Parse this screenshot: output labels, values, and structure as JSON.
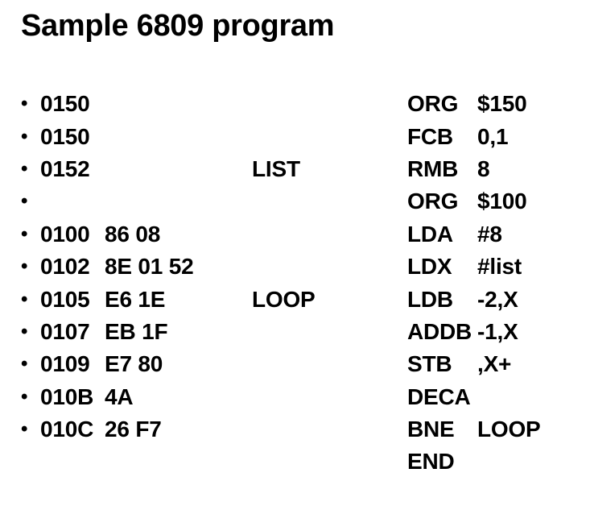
{
  "slide": {
    "title": "Sample 6809 program",
    "bullet_glyph": "•",
    "colors": {
      "background": "#ffffff",
      "text": "#000000"
    },
    "program_rows": [
      {
        "bullet": true,
        "address": "0150",
        "machine_code": "",
        "label": "",
        "mnemonic": "ORG",
        "operand": "$150"
      },
      {
        "bullet": true,
        "address": "0150",
        "machine_code": "",
        "label": "",
        "mnemonic": "FCB",
        "operand": "0,1"
      },
      {
        "bullet": true,
        "address": "0152",
        "machine_code": "",
        "label": "LIST",
        "mnemonic": "RMB",
        "operand": "8"
      },
      {
        "bullet": true,
        "address": "",
        "machine_code": "",
        "label": "",
        "mnemonic": "ORG",
        "operand": "$100"
      },
      {
        "bullet": true,
        "address": "0100",
        "machine_code": "86 08",
        "label": "",
        "mnemonic": "LDA",
        "operand": "#8"
      },
      {
        "bullet": true,
        "address": "0102",
        "machine_code": "8E 01 52",
        "label": "",
        "mnemonic": "LDX",
        "operand": "#list"
      },
      {
        "bullet": true,
        "address": "0105",
        "machine_code": "E6 1E",
        "label": "LOOP",
        "mnemonic": "LDB",
        "operand": "-2,X"
      },
      {
        "bullet": true,
        "address": "0107",
        "machine_code": "EB 1F",
        "label": "",
        "mnemonic": "ADDB",
        "operand": "-1,X"
      },
      {
        "bullet": true,
        "address": "0109",
        "machine_code": "E7 80",
        "label": "",
        "mnemonic": "STB",
        "operand": ",X+"
      },
      {
        "bullet": true,
        "address": "010B",
        "machine_code": "4A",
        "label": "",
        "mnemonic": "DECA",
        "operand": ""
      },
      {
        "bullet": true,
        "address": "010C",
        "machine_code": "26 F7",
        "label": "",
        "mnemonic": "BNE",
        "operand": "LOOP"
      },
      {
        "bullet": false,
        "address": "",
        "machine_code": "",
        "label": "",
        "mnemonic": "END",
        "operand": ""
      }
    ]
  }
}
